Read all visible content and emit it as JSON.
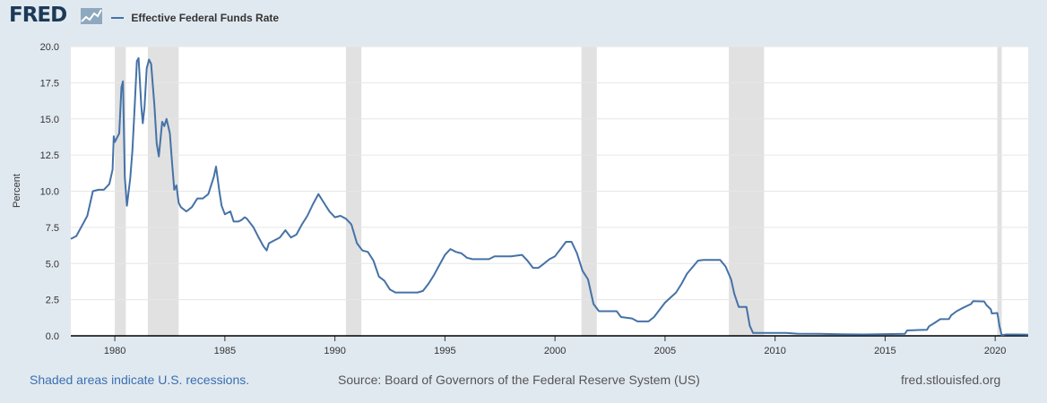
{
  "header": {
    "logo_text": "FRED",
    "logo_graph_icon": "line-graph-icon",
    "legend_label": "Effective Federal Funds Rate"
  },
  "colors": {
    "series": "#4572a7",
    "recession": "#e1e1e1",
    "page_background": "#e1e9f0",
    "plot_background": "#ffffff",
    "grid": "#e6e6e6"
  },
  "footer": {
    "recession_note": "Shaded areas indicate U.S. recessions.",
    "source": "Source: Board of Governors of the Federal Reserve System (US)",
    "url": "fred.stlouisfed.org"
  },
  "chart_data": {
    "type": "line",
    "ylabel": "Percent",
    "xlabel": "",
    "xlim": [
      1978.0,
      2021.5
    ],
    "ylim": [
      0,
      20
    ],
    "yticks": [
      "0.0",
      "2.5",
      "5.0",
      "7.5",
      "10.0",
      "12.5",
      "15.0",
      "17.5",
      "20.0"
    ],
    "xticks": [
      "1980",
      "1985",
      "1990",
      "1995",
      "2000",
      "2005",
      "2010",
      "2015",
      "2020"
    ],
    "grid": "horizontal",
    "recessions": [
      [
        1980.0,
        1980.5
      ],
      [
        1981.5,
        1982.9
      ],
      [
        1990.5,
        1991.2
      ],
      [
        2001.2,
        2001.9
      ],
      [
        2007.9,
        2009.5
      ],
      [
        2020.1,
        2020.3
      ]
    ],
    "series": [
      {
        "name": "Effective Federal Funds Rate",
        "points": [
          [
            1978.0,
            6.7
          ],
          [
            1978.25,
            6.9
          ],
          [
            1978.5,
            7.6
          ],
          [
            1978.75,
            8.3
          ],
          [
            1979.0,
            10.0
          ],
          [
            1979.25,
            10.1
          ],
          [
            1979.5,
            10.1
          ],
          [
            1979.75,
            10.5
          ],
          [
            1979.9,
            11.5
          ],
          [
            1979.95,
            13.8
          ],
          [
            1980.0,
            13.4
          ],
          [
            1980.2,
            14.0
          ],
          [
            1980.3,
            17.2
          ],
          [
            1980.37,
            17.6
          ],
          [
            1980.45,
            11.0
          ],
          [
            1980.55,
            9.0
          ],
          [
            1980.7,
            10.9
          ],
          [
            1980.8,
            12.8
          ],
          [
            1980.9,
            15.8
          ],
          [
            1981.0,
            19.0
          ],
          [
            1981.08,
            19.2
          ],
          [
            1981.2,
            15.9
          ],
          [
            1981.27,
            14.7
          ],
          [
            1981.35,
            15.8
          ],
          [
            1981.45,
            18.5
          ],
          [
            1981.55,
            19.1
          ],
          [
            1981.65,
            18.8
          ],
          [
            1981.8,
            15.9
          ],
          [
            1981.9,
            13.3
          ],
          [
            1982.0,
            12.4
          ],
          [
            1982.15,
            14.8
          ],
          [
            1982.25,
            14.5
          ],
          [
            1982.35,
            15.0
          ],
          [
            1982.5,
            14.0
          ],
          [
            1982.6,
            12.0
          ],
          [
            1982.7,
            10.1
          ],
          [
            1982.8,
            10.4
          ],
          [
            1982.9,
            9.2
          ],
          [
            1983.0,
            8.9
          ],
          [
            1983.25,
            8.6
          ],
          [
            1983.5,
            8.9
          ],
          [
            1983.75,
            9.5
          ],
          [
            1984.0,
            9.5
          ],
          [
            1984.25,
            9.8
          ],
          [
            1984.5,
            11.0
          ],
          [
            1984.6,
            11.7
          ],
          [
            1984.75,
            10.0
          ],
          [
            1984.85,
            9.0
          ],
          [
            1985.0,
            8.4
          ],
          [
            1985.25,
            8.6
          ],
          [
            1985.4,
            7.9
          ],
          [
            1985.6,
            7.9
          ],
          [
            1985.75,
            8.0
          ],
          [
            1985.9,
            8.2
          ],
          [
            1986.0,
            8.1
          ],
          [
            1986.3,
            7.5
          ],
          [
            1986.5,
            6.9
          ],
          [
            1986.75,
            6.2
          ],
          [
            1986.9,
            5.9
          ],
          [
            1987.0,
            6.4
          ],
          [
            1987.25,
            6.6
          ],
          [
            1987.5,
            6.8
          ],
          [
            1987.75,
            7.3
          ],
          [
            1988.0,
            6.8
          ],
          [
            1988.25,
            7.0
          ],
          [
            1988.5,
            7.7
          ],
          [
            1988.75,
            8.3
          ],
          [
            1989.0,
            9.1
          ],
          [
            1989.25,
            9.8
          ],
          [
            1989.5,
            9.2
          ],
          [
            1989.75,
            8.6
          ],
          [
            1990.0,
            8.2
          ],
          [
            1990.25,
            8.3
          ],
          [
            1990.5,
            8.1
          ],
          [
            1990.75,
            7.7
          ],
          [
            1991.0,
            6.4
          ],
          [
            1991.25,
            5.9
          ],
          [
            1991.5,
            5.8
          ],
          [
            1991.75,
            5.2
          ],
          [
            1992.0,
            4.1
          ],
          [
            1992.25,
            3.8
          ],
          [
            1992.5,
            3.2
          ],
          [
            1992.75,
            3.0
          ],
          [
            1993.0,
            3.0
          ],
          [
            1993.5,
            3.0
          ],
          [
            1993.75,
            3.0
          ],
          [
            1994.0,
            3.1
          ],
          [
            1994.25,
            3.6
          ],
          [
            1994.5,
            4.2
          ],
          [
            1994.75,
            4.9
          ],
          [
            1995.0,
            5.6
          ],
          [
            1995.25,
            6.0
          ],
          [
            1995.5,
            5.8
          ],
          [
            1995.75,
            5.7
          ],
          [
            1996.0,
            5.4
          ],
          [
            1996.25,
            5.3
          ],
          [
            1996.5,
            5.3
          ],
          [
            1996.75,
            5.3
          ],
          [
            1997.0,
            5.3
          ],
          [
            1997.25,
            5.5
          ],
          [
            1997.5,
            5.5
          ],
          [
            1998.0,
            5.5
          ],
          [
            1998.5,
            5.6
          ],
          [
            1998.75,
            5.2
          ],
          [
            1999.0,
            4.7
          ],
          [
            1999.25,
            4.7
          ],
          [
            1999.5,
            5.0
          ],
          [
            1999.75,
            5.3
          ],
          [
            2000.0,
            5.5
          ],
          [
            2000.25,
            6.0
          ],
          [
            2000.5,
            6.5
          ],
          [
            2000.75,
            6.5
          ],
          [
            2001.0,
            5.7
          ],
          [
            2001.25,
            4.5
          ],
          [
            2001.5,
            3.9
          ],
          [
            2001.75,
            2.2
          ],
          [
            2002.0,
            1.7
          ],
          [
            2002.5,
            1.7
          ],
          [
            2002.8,
            1.7
          ],
          [
            2003.0,
            1.3
          ],
          [
            2003.5,
            1.2
          ],
          [
            2003.75,
            1.0
          ],
          [
            2004.0,
            1.0
          ],
          [
            2004.25,
            1.0
          ],
          [
            2004.5,
            1.3
          ],
          [
            2004.75,
            1.8
          ],
          [
            2005.0,
            2.3
          ],
          [
            2005.5,
            3.0
          ],
          [
            2005.75,
            3.6
          ],
          [
            2006.0,
            4.3
          ],
          [
            2006.5,
            5.2
          ],
          [
            2006.75,
            5.25
          ],
          [
            2007.5,
            5.25
          ],
          [
            2007.75,
            4.8
          ],
          [
            2008.0,
            3.9
          ],
          [
            2008.15,
            2.9
          ],
          [
            2008.35,
            2.0
          ],
          [
            2008.7,
            2.0
          ],
          [
            2008.85,
            0.7
          ],
          [
            2009.0,
            0.2
          ],
          [
            2009.5,
            0.2
          ],
          [
            2010.5,
            0.2
          ],
          [
            2011.0,
            0.15
          ],
          [
            2012.0,
            0.14
          ],
          [
            2013.0,
            0.11
          ],
          [
            2014.0,
            0.09
          ],
          [
            2015.0,
            0.12
          ],
          [
            2015.9,
            0.14
          ],
          [
            2016.0,
            0.37
          ],
          [
            2016.5,
            0.4
          ],
          [
            2016.9,
            0.42
          ],
          [
            2017.0,
            0.66
          ],
          [
            2017.25,
            0.9
          ],
          [
            2017.5,
            1.15
          ],
          [
            2017.9,
            1.16
          ],
          [
            2018.0,
            1.42
          ],
          [
            2018.25,
            1.7
          ],
          [
            2018.5,
            1.91
          ],
          [
            2018.9,
            2.2
          ],
          [
            2019.0,
            2.4
          ],
          [
            2019.5,
            2.38
          ],
          [
            2019.6,
            2.13
          ],
          [
            2019.8,
            1.83
          ],
          [
            2019.85,
            1.55
          ],
          [
            2020.1,
            1.58
          ],
          [
            2020.2,
            0.65
          ],
          [
            2020.3,
            0.05
          ],
          [
            2020.5,
            0.09
          ],
          [
            2021.0,
            0.09
          ],
          [
            2021.5,
            0.08
          ]
        ]
      }
    ]
  }
}
